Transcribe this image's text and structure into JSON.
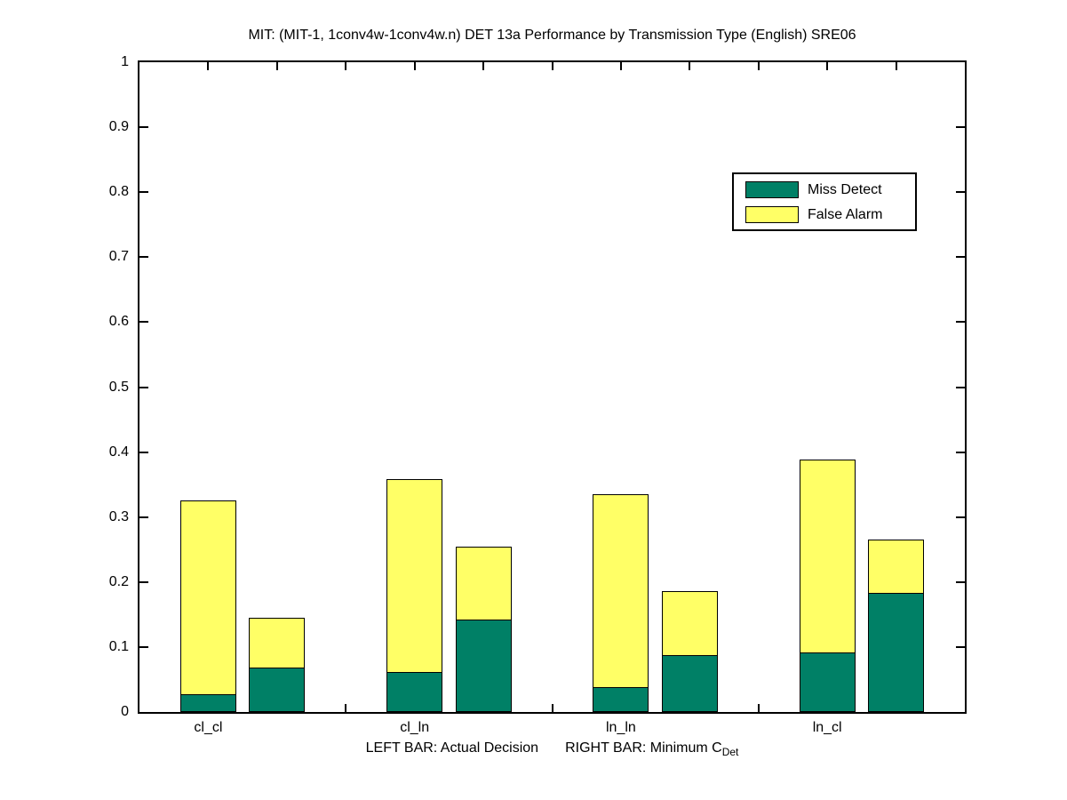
{
  "figure": {
    "title": "MIT: (MIT-1, 1conv4w-1conv4w.n) DET 13a Performance by Transmission Type (English) SRE06",
    "xlabel_left": "LEFT BAR: Actual Decision",
    "xlabel_right_main": "RIGHT BAR: Minimum C",
    "xlabel_right_sub": "Det",
    "background_color": "#ffffff"
  },
  "chart_data": {
    "type": "bar",
    "stacked": true,
    "title": "MIT: (MIT-1, 1conv4w-1conv4w.n) DET 13a Performance by Transmission Type (English) SRE06",
    "categories": [
      "cl_cl",
      "cl_ln",
      "ln_ln",
      "ln_cl"
    ],
    "bars_per_category": [
      "Actual Decision",
      "Minimum C_Det"
    ],
    "series": [
      {
        "name": "Miss Detect",
        "color": "#008066",
        "values_actual": [
          0.028,
          0.061,
          0.038,
          0.091
        ],
        "values_minimum": [
          0.068,
          0.142,
          0.088,
          0.184
        ]
      },
      {
        "name": "False Alarm",
        "color": "#ffff66",
        "values_actual": [
          0.297,
          0.297,
          0.297,
          0.298
        ],
        "values_minimum": [
          0.077,
          0.113,
          0.098,
          0.081
        ]
      }
    ],
    "stack_totals_actual": [
      0.325,
      0.358,
      0.335,
      0.389
    ],
    "stack_totals_minimum": [
      0.145,
      0.255,
      0.186,
      0.265
    ],
    "xlabel": "LEFT BAR: Actual Decision    RIGHT BAR: Minimum C_Det",
    "ylabel": "",
    "ylim": [
      0,
      1
    ],
    "yticks": [
      0,
      0.1,
      0.2,
      0.3,
      0.4,
      0.5,
      0.6,
      0.7,
      0.8,
      0.9,
      1
    ],
    "ytick_labels": [
      "0",
      "0.1",
      "0.2",
      "0.3",
      "0.4",
      "0.5",
      "0.6",
      "0.7",
      "0.8",
      "0.9",
      "1"
    ],
    "xlim": [
      0,
      12
    ],
    "bar_positions_actual": [
      1,
      4,
      7,
      10
    ],
    "bar_positions_minimum": [
      2,
      5,
      8,
      11
    ],
    "xtick_positions": [
      1,
      2,
      3,
      4,
      5,
      6,
      7,
      8,
      9,
      10,
      11
    ],
    "grid": false,
    "legend": {
      "position": "upper right",
      "entries": [
        "Miss Detect",
        "False Alarm"
      ]
    }
  }
}
